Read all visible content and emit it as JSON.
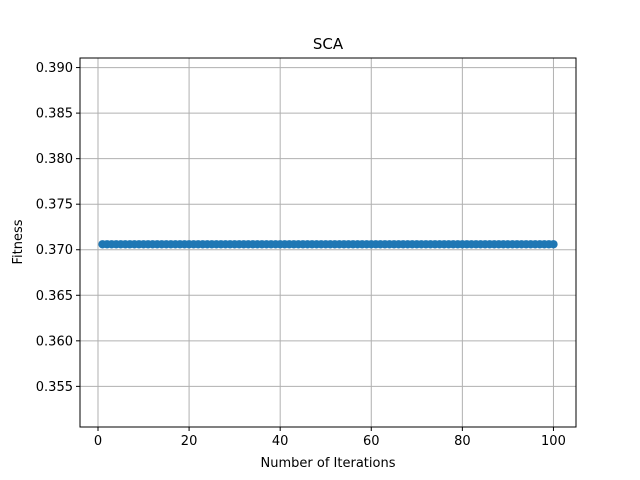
{
  "chart_data": {
    "type": "line",
    "title": "SCA",
    "xlabel": "Number of Iterations",
    "ylabel": "Fitness",
    "xlim": [
      -3.95,
      104.95
    ],
    "ylim": [
      0.35054,
      0.39105
    ],
    "xticks": [
      0,
      20,
      40,
      60,
      80,
      100
    ],
    "yticks": [
      0.355,
      0.36,
      0.365,
      0.37,
      0.375,
      0.38,
      0.385,
      0.39
    ],
    "ytick_labels": [
      "0.355",
      "0.360",
      "0.365",
      "0.370",
      "0.375",
      "0.380",
      "0.385",
      "0.390"
    ],
    "grid": true,
    "marker": "o",
    "series": [
      {
        "color": "#1f77b4",
        "x_start": 1,
        "x_end": 100,
        "x_step": 1,
        "y_constant": 0.3706
      }
    ]
  }
}
